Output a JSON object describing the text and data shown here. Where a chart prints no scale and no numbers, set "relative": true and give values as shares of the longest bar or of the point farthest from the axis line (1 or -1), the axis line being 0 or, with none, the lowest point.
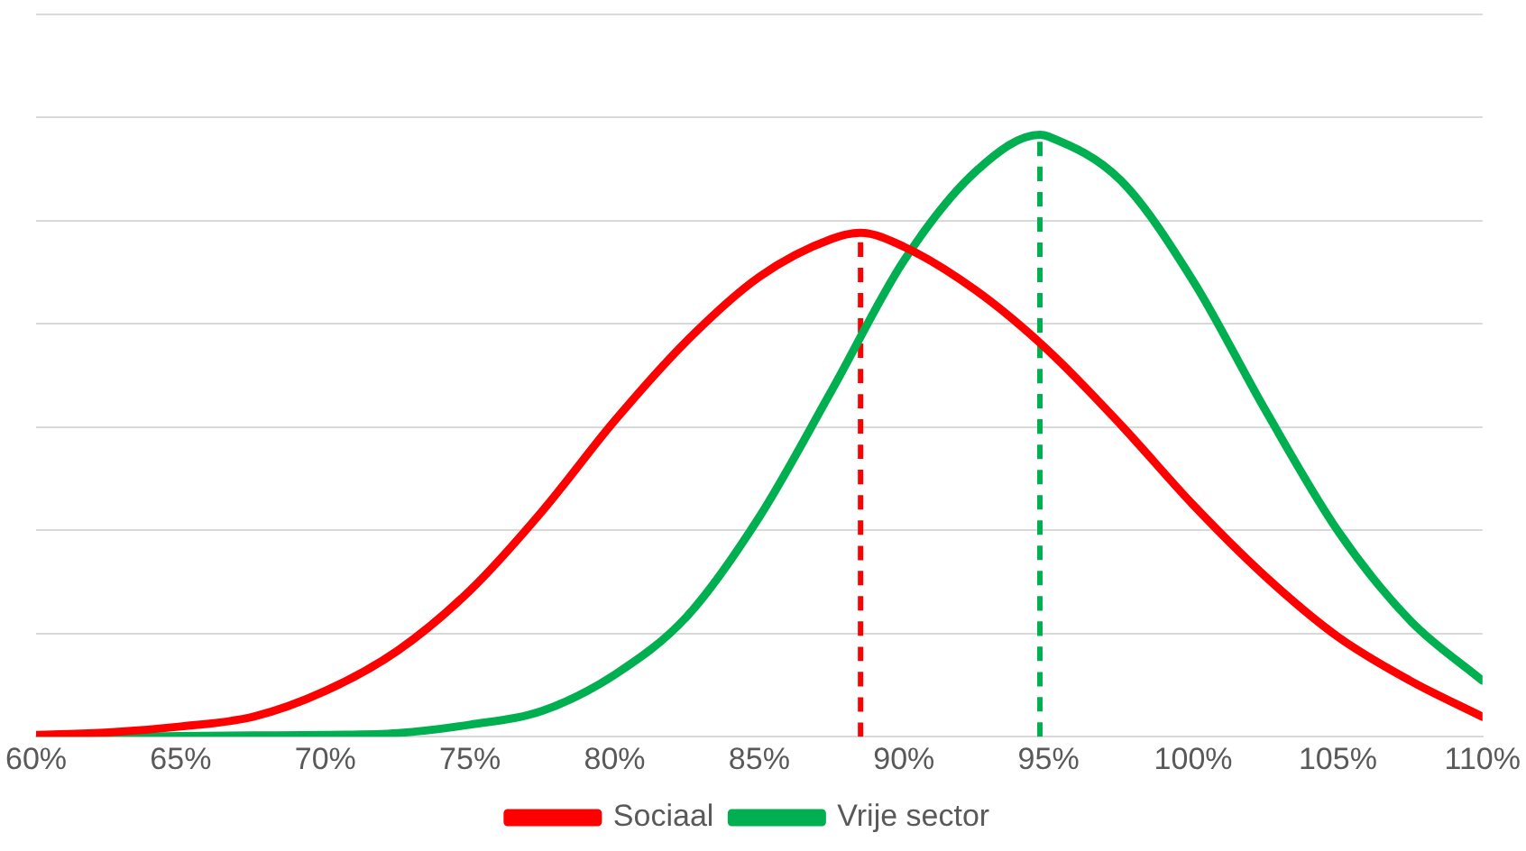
{
  "chart_data": {
    "type": "line",
    "relative": true,
    "grid": "y",
    "legend": "bottom",
    "marker": "none",
    "xlim": [
      60,
      110
    ],
    "xticks": [
      {
        "value": 60,
        "label": "60%"
      },
      {
        "value": 65,
        "label": "65%"
      },
      {
        "value": 70,
        "label": "70%"
      },
      {
        "value": 75,
        "label": "75%"
      },
      {
        "value": 80,
        "label": "80%"
      },
      {
        "value": 85,
        "label": "85%"
      },
      {
        "value": 90,
        "label": "90%"
      },
      {
        "value": 95,
        "label": "95%"
      },
      {
        "value": 100,
        "label": "100%"
      },
      {
        "value": 105,
        "label": "105%"
      },
      {
        "value": 110,
        "label": "110%"
      }
    ],
    "series": [
      {
        "name": "Sociaal",
        "color": "#ff0000",
        "line_style": "solid",
        "x": [
          60,
          62.5,
          65,
          67.5,
          70,
          72.5,
          75,
          77.5,
          80,
          82.5,
          85,
          87.5,
          88.5,
          90,
          92.5,
          95,
          97.5,
          100,
          102.5,
          105,
          107.5,
          110
        ],
        "values": [
          0.003,
          0.007,
          0.017,
          0.033,
          0.076,
          0.143,
          0.243,
          0.375,
          0.525,
          0.658,
          0.764,
          0.827,
          0.837,
          0.814,
          0.741,
          0.641,
          0.518,
          0.385,
          0.266,
          0.166,
          0.093,
          0.033
        ]
      },
      {
        "name": "Vrije sector",
        "color": "#00b050",
        "line_style": "solid",
        "x": [
          60,
          62.5,
          65,
          67.5,
          70,
          72.5,
          75,
          77.5,
          80,
          82.5,
          85,
          87.5,
          90,
          92.5,
          94.7,
          95,
          97.5,
          100,
          102.5,
          105,
          107.5,
          110
        ],
        "values": [
          0,
          0,
          0.001,
          0.002,
          0.003,
          0.006,
          0.02,
          0.043,
          0.103,
          0.2,
          0.365,
          0.575,
          0.791,
          0.94,
          1,
          0.997,
          0.924,
          0.757,
          0.542,
          0.342,
          0.193,
          0.093
        ]
      },
      {
        "type": "line",
        "color": "#ff0000",
        "line_style": "dashed",
        "x": [
          88.5,
          88.5
        ],
        "values": [
          0,
          0.837
        ]
      },
      {
        "type": "line",
        "color": "#00b050",
        "line_style": "dashed",
        "x": [
          94.7,
          94.7
        ],
        "values": [
          0,
          1
        ]
      }
    ]
  }
}
